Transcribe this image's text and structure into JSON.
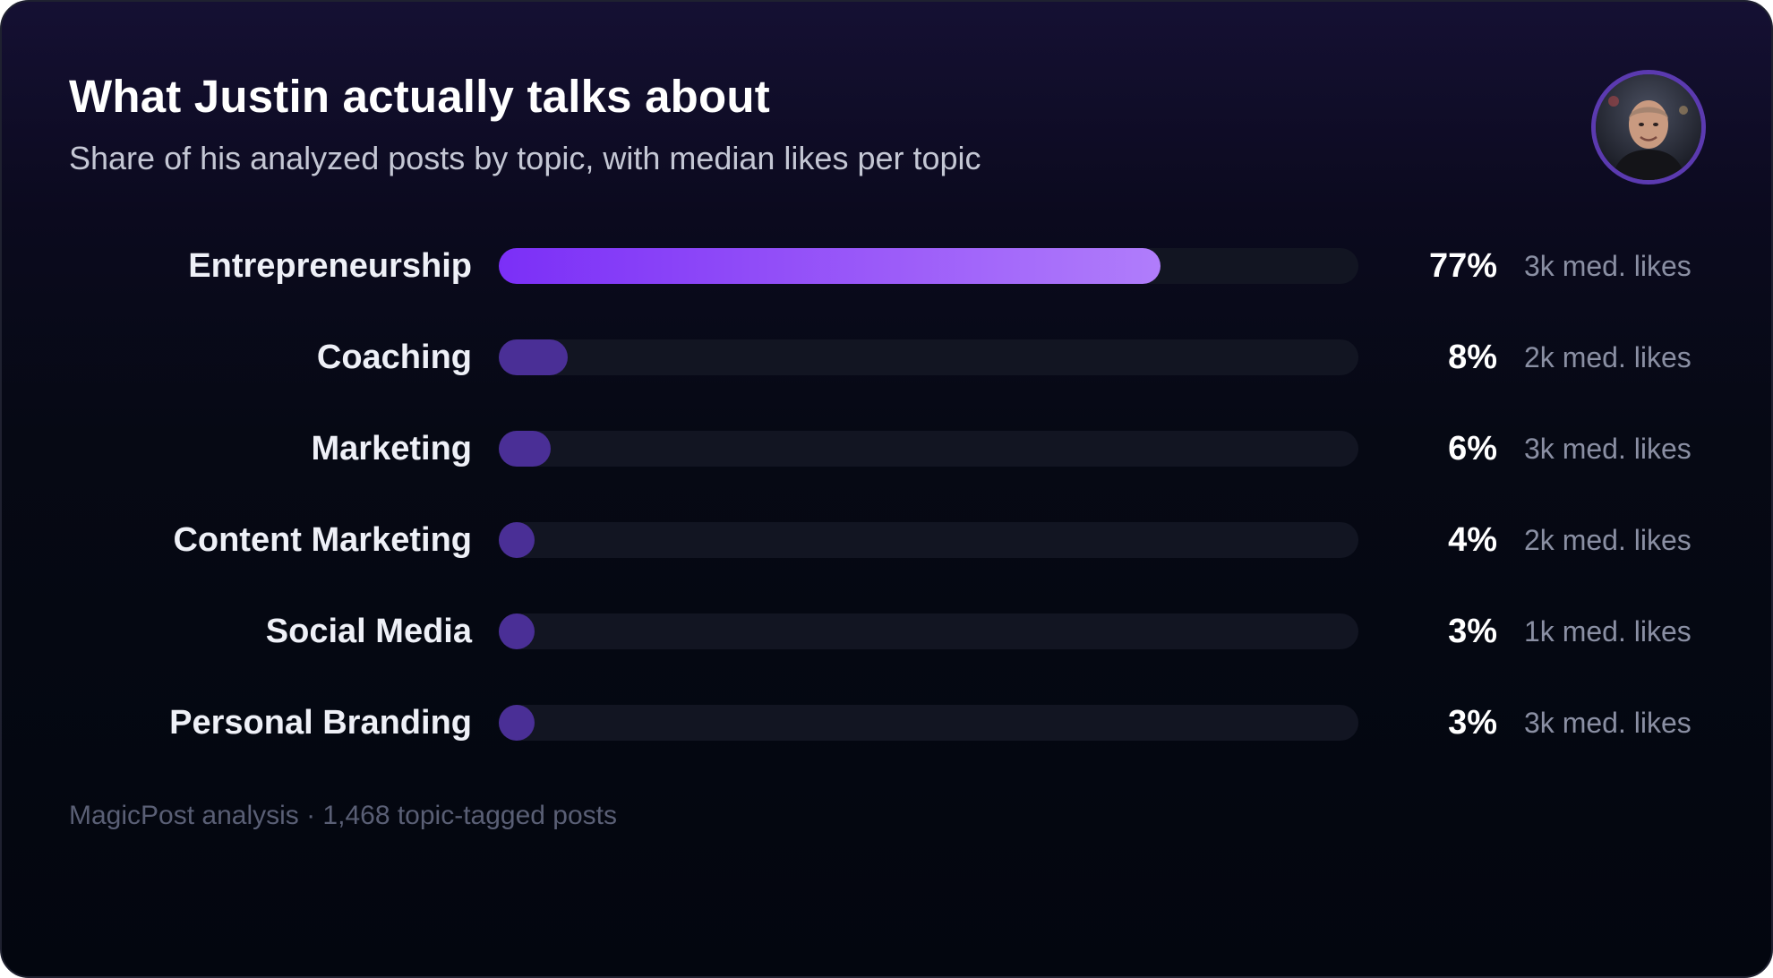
{
  "header": {
    "title": "What Justin actually talks about",
    "subtitle": "Share of his analyzed posts by topic, with median likes per topic"
  },
  "avatar": {
    "icon": "profile-photo"
  },
  "colors": {
    "top_bar_start": "#7b2ff7",
    "top_bar_end": "#b07dfb",
    "bar": "#4a2f96",
    "track": "#121522"
  },
  "chart_data": {
    "type": "bar",
    "orientation": "horizontal",
    "title": "What Justin actually talks about",
    "subtitle": "Share of his analyzed posts by topic, with median likes per topic",
    "xlim": [
      0,
      100
    ],
    "grid": false,
    "categories": [
      "Entrepreneurship",
      "Coaching",
      "Marketing",
      "Content Marketing",
      "Social Media",
      "Personal Branding"
    ],
    "values": [
      77,
      8,
      6,
      4,
      3,
      3
    ],
    "value_labels": [
      "77%",
      "8%",
      "6%",
      "4%",
      "3%",
      "3%"
    ],
    "median_likes_labels": [
      "3k med. likes",
      "2k med. likes",
      "3k med. likes",
      "2k med. likes",
      "1k med. likes",
      "3k med. likes"
    ]
  },
  "footer": {
    "text": "MagicPost analysis · 1,468 topic-tagged posts"
  }
}
